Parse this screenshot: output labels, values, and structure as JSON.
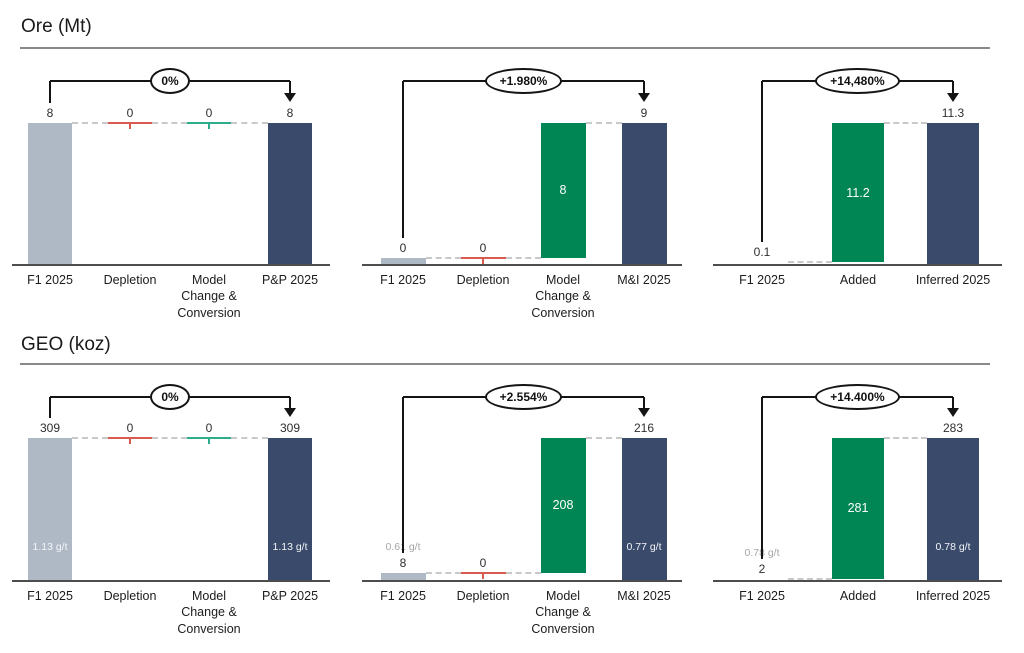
{
  "sections": [
    {
      "title": "Ore (Mt)"
    },
    {
      "title": "GEO (koz)"
    }
  ],
  "colors": {
    "gray": "#AFB9C6",
    "navy": "#394A6B",
    "green": "#008655",
    "red": "#D85A50",
    "teal": "#2EAD8C",
    "axis": "#4D4D4D",
    "dash": "#C9C9C9",
    "grade_gray": "#A6A6A6"
  },
  "chart_data": [
    {
      "type": "waterfall",
      "section": "Ore (Mt)",
      "change_bubble": "0%",
      "categories": [
        "F1 2025",
        "Depletion",
        "Model Change & Conversion",
        "P&P 2025"
      ],
      "values": [
        8,
        0,
        0,
        8
      ],
      "columns": [
        {
          "category": "F1 2025",
          "value": 8,
          "value_label": "8",
          "bar": "gray",
          "bottom": 0,
          "top": 1
        },
        {
          "category": "Depletion",
          "value": 0,
          "value_label": "0",
          "bar": "zero-red",
          "level": 1
        },
        {
          "category": "Model\nChange &\nConversion",
          "value": 0,
          "value_label": "0",
          "bar": "zero-teal",
          "level": 1
        },
        {
          "category": "P&P 2025",
          "value": 8,
          "value_label": "8",
          "bar": "navy",
          "bottom": 0,
          "top": 1
        }
      ],
      "connectors": [
        1,
        1,
        1
      ]
    },
    {
      "type": "waterfall",
      "section": "Ore (Mt)",
      "change_bubble": "+1.980%",
      "categories": [
        "F1 2025",
        "Depletion",
        "Model Change & Conversion",
        "M&I 2025"
      ],
      "values": [
        0,
        0,
        8,
        9
      ],
      "columns": [
        {
          "category": "F1 2025",
          "value": 0,
          "value_label": "0",
          "bar": "gray",
          "bottom": 0,
          "top": 0.045
        },
        {
          "category": "Depletion",
          "value": 0,
          "value_label": "0",
          "bar": "zero-red",
          "level": 0.045
        },
        {
          "category": "Model\nChange &\nConversion",
          "value": 8,
          "inner_label": "8",
          "bar": "green",
          "bottom": 0.045,
          "top": 1
        },
        {
          "category": "M&I 2025",
          "value": 9,
          "value_label": "9",
          "bar": "navy",
          "bottom": 0,
          "top": 1
        }
      ],
      "connectors": [
        0.045,
        0.045,
        1
      ]
    },
    {
      "type": "waterfall",
      "section": "Ore (Mt)",
      "change_bubble": "+14,480%",
      "categories": [
        "F1 2025",
        "Added",
        "Inferred 2025"
      ],
      "values": [
        0.1,
        11.2,
        11.3
      ],
      "columns": [
        {
          "category": "F1 2025",
          "value": 0.1,
          "value_label": "0.1",
          "bar": "none",
          "level": 0.012
        },
        {
          "category": "Added",
          "value": 11.2,
          "inner_label": "11.2",
          "bar": "green",
          "bottom": 0.012,
          "top": 1
        },
        {
          "category": "Inferred 2025",
          "value": 11.3,
          "value_label": "11.3",
          "bar": "navy",
          "bottom": 0,
          "top": 1
        }
      ],
      "connectors": [
        0.012,
        1
      ]
    },
    {
      "type": "waterfall",
      "section": "GEO (koz)",
      "change_bubble": "0%",
      "categories": [
        "F1 2025",
        "Depletion",
        "Model Change & Conversion",
        "P&P 2025"
      ],
      "values": [
        309,
        0,
        0,
        309
      ],
      "columns": [
        {
          "category": "F1 2025",
          "value": 309,
          "value_label": "309",
          "grade_label": "1.13 g/t",
          "grade_pos": "inside",
          "bar": "gray",
          "bottom": 0,
          "top": 1
        },
        {
          "category": "Depletion",
          "value": 0,
          "value_label": "0",
          "bar": "zero-red",
          "level": 1
        },
        {
          "category": "Model\nChange &\nConversion",
          "value": 0,
          "value_label": "0",
          "bar": "zero-teal",
          "level": 1
        },
        {
          "category": "P&P 2025",
          "value": 309,
          "value_label": "309",
          "grade_label": "1.13 g/t",
          "grade_pos": "inside",
          "bar": "navy",
          "bottom": 0,
          "top": 1
        }
      ],
      "connectors": [
        1,
        1,
        1
      ]
    },
    {
      "type": "waterfall",
      "section": "GEO (koz)",
      "change_bubble": "+2.554%",
      "categories": [
        "F1 2025",
        "Depletion",
        "Model Change & Conversion",
        "M&I 2025"
      ],
      "values": [
        8,
        0,
        208,
        216
      ],
      "columns": [
        {
          "category": "F1 2025",
          "value": 8,
          "value_label": "8",
          "grade_label": "0.61 g/t",
          "grade_pos": "above",
          "bar": "gray",
          "bottom": 0,
          "top": 0.05
        },
        {
          "category": "Depletion",
          "value": 0,
          "value_label": "0",
          "bar": "zero-red",
          "level": 0.05
        },
        {
          "category": "Model\nChange &\nConversion",
          "value": 208,
          "inner_label": "208",
          "bar": "green",
          "bottom": 0.05,
          "top": 1
        },
        {
          "category": "M&I 2025",
          "value": 216,
          "value_label": "216",
          "grade_label": "0.77 g/t",
          "grade_pos": "inside",
          "bar": "navy",
          "bottom": 0,
          "top": 1
        }
      ],
      "connectors": [
        0.05,
        0.05,
        1
      ]
    },
    {
      "type": "waterfall",
      "section": "GEO (koz)",
      "change_bubble": "+14.400%",
      "categories": [
        "F1 2025",
        "Added",
        "Inferred 2025"
      ],
      "values": [
        2,
        281,
        283
      ],
      "columns": [
        {
          "category": "F1 2025",
          "value": 2,
          "value_label": "2",
          "grade_label": "0.78 g/t",
          "grade_pos": "above",
          "bar": "none",
          "level": 0.01
        },
        {
          "category": "Added",
          "value": 281,
          "inner_label": "281",
          "bar": "green",
          "bottom": 0.01,
          "top": 1
        },
        {
          "category": "Inferred 2025",
          "value": 283,
          "value_label": "283",
          "grade_label": "0.78 g/t",
          "grade_pos": "inside",
          "bar": "navy",
          "bottom": 0,
          "top": 1
        }
      ],
      "connectors": [
        0.01,
        1
      ]
    }
  ]
}
